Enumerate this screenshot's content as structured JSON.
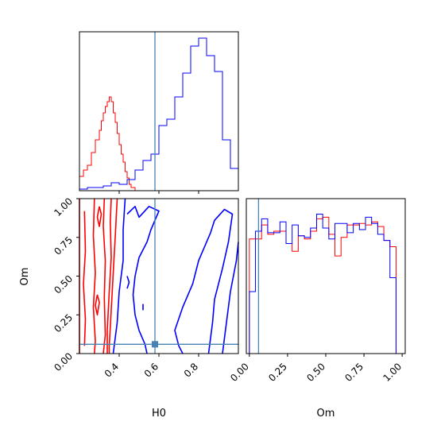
{
  "chart_data": {
    "type": "corner",
    "parameters": [
      "H0",
      "Om"
    ],
    "truth": {
      "H0": 0.58,
      "Om": 0.06
    },
    "colors": {
      "red_series": "#ff0000",
      "blue_series": "#0000ff",
      "truth": "#4682b4"
    },
    "panels": [
      {
        "id": "H0-marginal",
        "type": "histogram-step",
        "xlim": [
          0.2,
          1.0
        ],
        "x_ticks": [
          0.4,
          0.6,
          0.8
        ],
        "x_tick_labels_shown": false,
        "y_ticks_shown": false,
        "series": [
          {
            "color": "red",
            "bin_edges": [
              0.2,
              0.22,
              0.24,
              0.26,
              0.28,
              0.3,
              0.31,
              0.32,
              0.33,
              0.34,
              0.35,
              0.36,
              0.37,
              0.38,
              0.39,
              0.4,
              0.41,
              0.42,
              0.43,
              0.44,
              0.45,
              0.46,
              0.48,
              0.5
            ],
            "heights": [
              0.09,
              0.13,
              0.16,
              0.24,
              0.32,
              0.38,
              0.44,
              0.49,
              0.53,
              0.56,
              0.59,
              0.56,
              0.49,
              0.43,
              0.36,
              0.29,
              0.23,
              0.18,
              0.12,
              0.08,
              0.04,
              0.02,
              0.0
            ]
          },
          {
            "color": "blue",
            "bin_edges": [
              0.2,
              0.24,
              0.28,
              0.32,
              0.36,
              0.4,
              0.44,
              0.48,
              0.52,
              0.56,
              0.6,
              0.64,
              0.68,
              0.72,
              0.76,
              0.8,
              0.84,
              0.88,
              0.92,
              0.96,
              1.0
            ],
            "heights": [
              0.01,
              0.02,
              0.02,
              0.03,
              0.05,
              0.04,
              0.07,
              0.13,
              0.19,
              0.23,
              0.41,
              0.45,
              0.59,
              0.74,
              0.91,
              0.96,
              0.85,
              0.75,
              0.32,
              0.14
            ]
          }
        ]
      },
      {
        "id": "H0-Om-joint",
        "type": "contour",
        "xlabel": "H0",
        "ylabel": "Om",
        "xlim": [
          0.2,
          1.0
        ],
        "ylim": [
          0.0,
          1.0
        ],
        "x_ticks": [
          0.4,
          0.6,
          0.8
        ],
        "x_tick_labels": [
          "0.4",
          "0.6",
          "0.8"
        ],
        "y_ticks": [
          0.0,
          0.25,
          0.5,
          0.75,
          1.0
        ],
        "y_tick_labels": [
          "0.00",
          "0.25",
          "0.50",
          "0.75",
          "1.00"
        ],
        "contours": [
          {
            "color": "red",
            "points": [
              [
                0.2,
                1.0
              ],
              [
                0.2,
                0.0
              ]
            ]
          },
          {
            "color": "red",
            "points": [
              [
                0.225,
                0.92
              ],
              [
                0.23,
                0.66
              ],
              [
                0.22,
                0.45
              ],
              [
                0.23,
                0.22
              ],
              [
                0.225,
                0.05
              ]
            ]
          },
          {
            "color": "red",
            "points": [
              [
                0.275,
                1.0
              ],
              [
                0.27,
                0.76
              ],
              [
                0.28,
                0.52
              ],
              [
                0.27,
                0.3
              ],
              [
                0.28,
                0.08
              ],
              [
                0.275,
                0.0
              ]
            ]
          },
          {
            "color": "red",
            "points": [
              [
                0.325,
                1.0
              ],
              [
                0.32,
                0.82
              ],
              [
                0.33,
                0.6
              ],
              [
                0.325,
                0.36
              ],
              [
                0.33,
                0.12
              ],
              [
                0.32,
                0.0
              ]
            ]
          },
          {
            "color": "red",
            "points": [
              [
                0.36,
                1.0
              ],
              [
                0.355,
                0.85
              ],
              [
                0.36,
                0.62
              ],
              [
                0.35,
                0.4
              ],
              [
                0.34,
                0.15
              ],
              [
                0.34,
                0.0
              ]
            ]
          },
          {
            "color": "red",
            "points": [
              [
                0.39,
                1.0
              ],
              [
                0.38,
                0.75
              ],
              [
                0.37,
                0.52
              ],
              [
                0.36,
                0.28
              ],
              [
                0.35,
                0.05
              ],
              [
                0.35,
                0.0
              ]
            ]
          },
          {
            "color": "red",
            "points": [
              [
                0.3,
                0.95
              ],
              [
                0.31,
                0.9
              ],
              [
                0.3,
                0.82
              ],
              [
                0.29,
                0.88
              ],
              [
                0.3,
                0.95
              ]
            ]
          },
          {
            "color": "red",
            "points": [
              [
                0.29,
                0.38
              ],
              [
                0.3,
                0.33
              ],
              [
                0.29,
                0.25
              ],
              [
                0.28,
                0.31
              ],
              [
                0.29,
                0.38
              ]
            ]
          },
          {
            "color": "blue",
            "points": [
              [
                0.43,
                1.0
              ],
              [
                0.42,
                0.8
              ],
              [
                0.42,
                0.6
              ],
              [
                0.4,
                0.4
              ],
              [
                0.39,
                0.2
              ],
              [
                0.37,
                0.0
              ]
            ]
          },
          {
            "color": "blue",
            "points": [
              [
                0.44,
                0.9
              ],
              [
                0.48,
                0.95
              ],
              [
                0.5,
                0.88
              ],
              [
                0.55,
                0.95
              ],
              [
                0.6,
                0.92
              ],
              [
                0.56,
                0.8
              ],
              [
                0.54,
                0.72
              ],
              [
                0.5,
                0.62
              ],
              [
                0.48,
                0.5
              ],
              [
                0.47,
                0.38
              ],
              [
                0.48,
                0.25
              ],
              [
                0.5,
                0.15
              ],
              [
                0.53,
                0.06
              ],
              [
                0.54,
                0.0
              ]
            ]
          },
          {
            "color": "blue",
            "points": [
              [
                0.85,
                0.0
              ],
              [
                0.86,
                0.1
              ],
              [
                0.87,
                0.2
              ],
              [
                0.88,
                0.35
              ],
              [
                0.92,
                0.55
              ],
              [
                0.95,
                0.72
              ],
              [
                0.97,
                0.9
              ],
              [
                0.93,
                0.93
              ],
              [
                0.88,
                0.86
              ],
              [
                0.86,
                0.78
              ],
              [
                0.8,
                0.6
              ],
              [
                0.77,
                0.45
              ],
              [
                0.72,
                0.3
              ],
              [
                0.68,
                0.15
              ],
              [
                0.7,
                0.05
              ],
              [
                0.72,
                0.0
              ]
            ]
          },
          {
            "color": "blue",
            "points": [
              [
                0.92,
                0.0
              ],
              [
                0.94,
                0.2
              ],
              [
                0.96,
                0.4
              ],
              [
                0.99,
                0.6
              ],
              [
                1.0,
                0.72
              ]
            ]
          },
          {
            "color": "blue",
            "points": [
              [
                0.44,
                0.5
              ],
              [
                0.45,
                0.46
              ],
              [
                0.44,
                0.42
              ]
            ]
          },
          {
            "color": "blue",
            "points": [
              [
                0.52,
                0.32
              ],
              [
                0.52,
                0.28
              ]
            ]
          }
        ]
      },
      {
        "id": "Om-marginal",
        "type": "histogram-step",
        "xlim": [
          0.0,
          1.0
        ],
        "x_ticks": [
          0.0,
          0.25,
          0.5,
          0.75,
          1.0
        ],
        "x_tick_labels": [
          "0.00",
          "0.25",
          "0.50",
          "0.75",
          "1.00"
        ],
        "xlabel": "Om",
        "y_ticks_shown": false,
        "series": [
          {
            "color": "red",
            "bin_edges": [
              0.0,
              0.04,
              0.08,
              0.12,
              0.16,
              0.2,
              0.24,
              0.28,
              0.32,
              0.36,
              0.4,
              0.44,
              0.48,
              0.52,
              0.56,
              0.6,
              0.64,
              0.68,
              0.72,
              0.76,
              0.8,
              0.84,
              0.88,
              0.92,
              0.96,
              1.0
            ],
            "heights": [
              0.74,
              0.74,
              0.83,
              0.77,
              0.79,
              0.79,
              0.71,
              0.66,
              0.76,
              0.74,
              0.79,
              0.87,
              0.88,
              0.77,
              0.63,
              0.75,
              0.83,
              0.83,
              0.84,
              0.83,
              0.85,
              0.82,
              0.73,
              0.69,
              0.0
            ]
          },
          {
            "color": "blue",
            "bin_edges": [
              0.0,
              0.04,
              0.08,
              0.12,
              0.16,
              0.2,
              0.24,
              0.28,
              0.32,
              0.36,
              0.4,
              0.44,
              0.48,
              0.52,
              0.56,
              0.6,
              0.64,
              0.68,
              0.72,
              0.76,
              0.8,
              0.84,
              0.88,
              0.92,
              0.96,
              1.0
            ],
            "heights": [
              0.4,
              0.79,
              0.87,
              0.78,
              0.78,
              0.85,
              0.71,
              0.83,
              0.76,
              0.75,
              0.81,
              0.9,
              0.81,
              0.74,
              0.84,
              0.84,
              0.78,
              0.84,
              0.8,
              0.88,
              0.84,
              0.77,
              0.73,
              0.49,
              0.0
            ]
          }
        ]
      }
    ]
  }
}
